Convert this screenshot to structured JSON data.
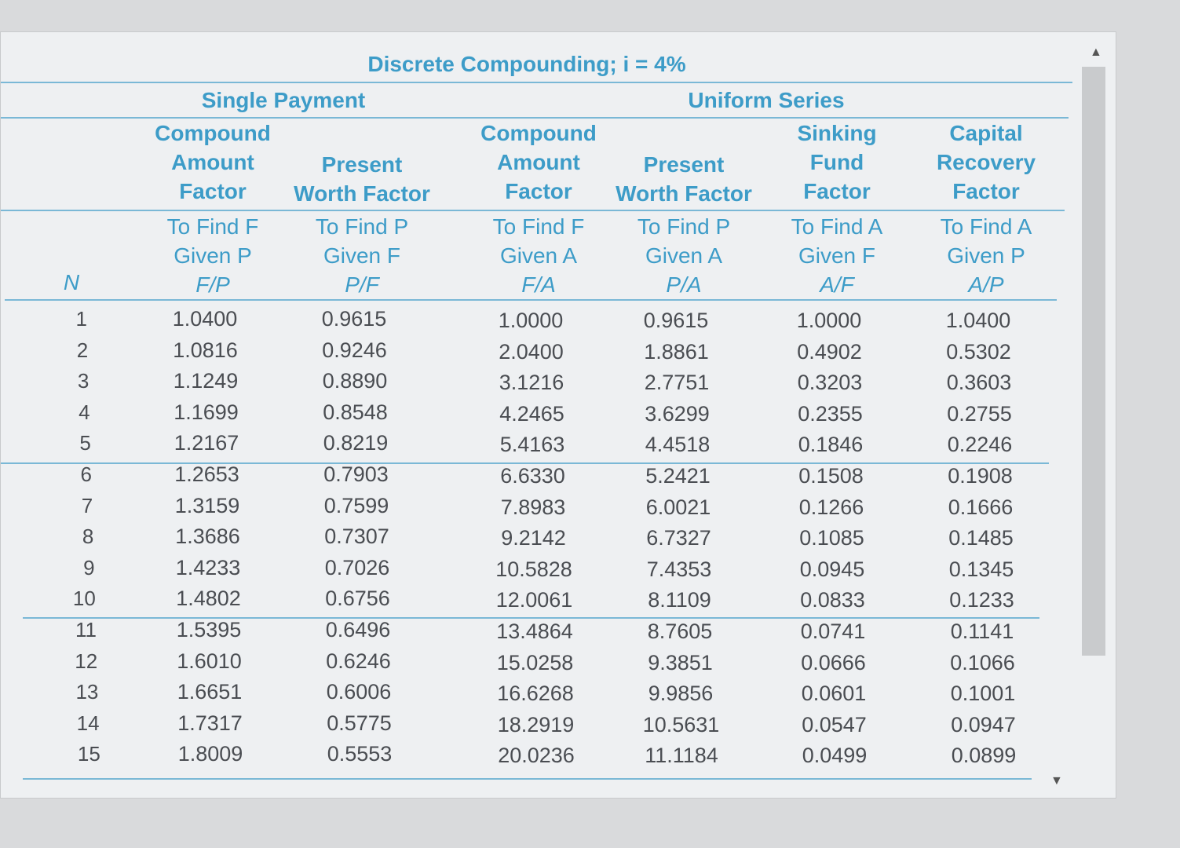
{
  "title": "Discrete Compounding; i = 4%",
  "groups": {
    "single": "Single Payment",
    "uniform": "Uniform Series"
  },
  "n_label": "N",
  "columns": [
    {
      "name": [
        "Compound",
        "Amount",
        "Factor"
      ],
      "find": [
        "To Find F",
        "Given P"
      ],
      "symbol": "F/P"
    },
    {
      "name": [
        "Present",
        "Worth Factor"
      ],
      "find": [
        "To Find P",
        "Given F"
      ],
      "symbol": "P/F"
    },
    {
      "name": [
        "Compound",
        "Amount",
        "Factor"
      ],
      "find": [
        "To Find F",
        "Given A"
      ],
      "symbol": "F/A"
    },
    {
      "name": [
        "Present",
        "Worth Factor"
      ],
      "find": [
        "To Find P",
        "Given A"
      ],
      "symbol": "P/A"
    },
    {
      "name": [
        "Sinking",
        "Fund",
        "Factor"
      ],
      "find": [
        "To Find A",
        "Given F"
      ],
      "symbol": "A/F"
    },
    {
      "name": [
        "Capital",
        "Recovery",
        "Factor"
      ],
      "find": [
        "To Find A",
        "Given P"
      ],
      "symbol": "A/P"
    }
  ],
  "rows": [
    [
      "1",
      "1.0400",
      "0.9615",
      "1.0000",
      "0.9615",
      "1.0000",
      "1.0400"
    ],
    [
      "2",
      "1.0816",
      "0.9246",
      "2.0400",
      "1.8861",
      "0.4902",
      "0.5302"
    ],
    [
      "3",
      "1.1249",
      "0.8890",
      "3.1216",
      "2.7751",
      "0.3203",
      "0.3603"
    ],
    [
      "4",
      "1.1699",
      "0.8548",
      "4.2465",
      "3.6299",
      "0.2355",
      "0.2755"
    ],
    [
      "5",
      "1.2167",
      "0.8219",
      "5.4163",
      "4.4518",
      "0.1846",
      "0.2246"
    ],
    [
      "6",
      "1.2653",
      "0.7903",
      "6.6330",
      "5.2421",
      "0.1508",
      "0.1908"
    ],
    [
      "7",
      "1.3159",
      "0.7599",
      "7.8983",
      "6.0021",
      "0.1266",
      "0.1666"
    ],
    [
      "8",
      "1.3686",
      "0.7307",
      "9.2142",
      "6.7327",
      "0.1085",
      "0.1485"
    ],
    [
      "9",
      "1.4233",
      "0.7026",
      "10.5828",
      "7.4353",
      "0.0945",
      "0.1345"
    ],
    [
      "10",
      "1.4802",
      "0.6756",
      "12.0061",
      "8.1109",
      "0.0833",
      "0.1233"
    ],
    [
      "11",
      "1.5395",
      "0.6496",
      "13.4864",
      "8.7605",
      "0.0741",
      "0.1141"
    ],
    [
      "12",
      "1.6010",
      "0.6246",
      "15.0258",
      "9.3851",
      "0.0666",
      "0.1066"
    ],
    [
      "13",
      "1.6651",
      "0.6006",
      "16.6268",
      "9.9856",
      "0.0601",
      "0.1001"
    ],
    [
      "14",
      "1.7317",
      "0.5775",
      "18.2919",
      "10.5631",
      "0.0547",
      "0.0947"
    ],
    [
      "15",
      "1.8009",
      "0.5553",
      "20.0236",
      "11.1184",
      "0.0499",
      "0.0899"
    ]
  ],
  "colors": {
    "header": "#3d9cc8",
    "text": "#4a4d52",
    "rule": "#7ab8d6"
  }
}
